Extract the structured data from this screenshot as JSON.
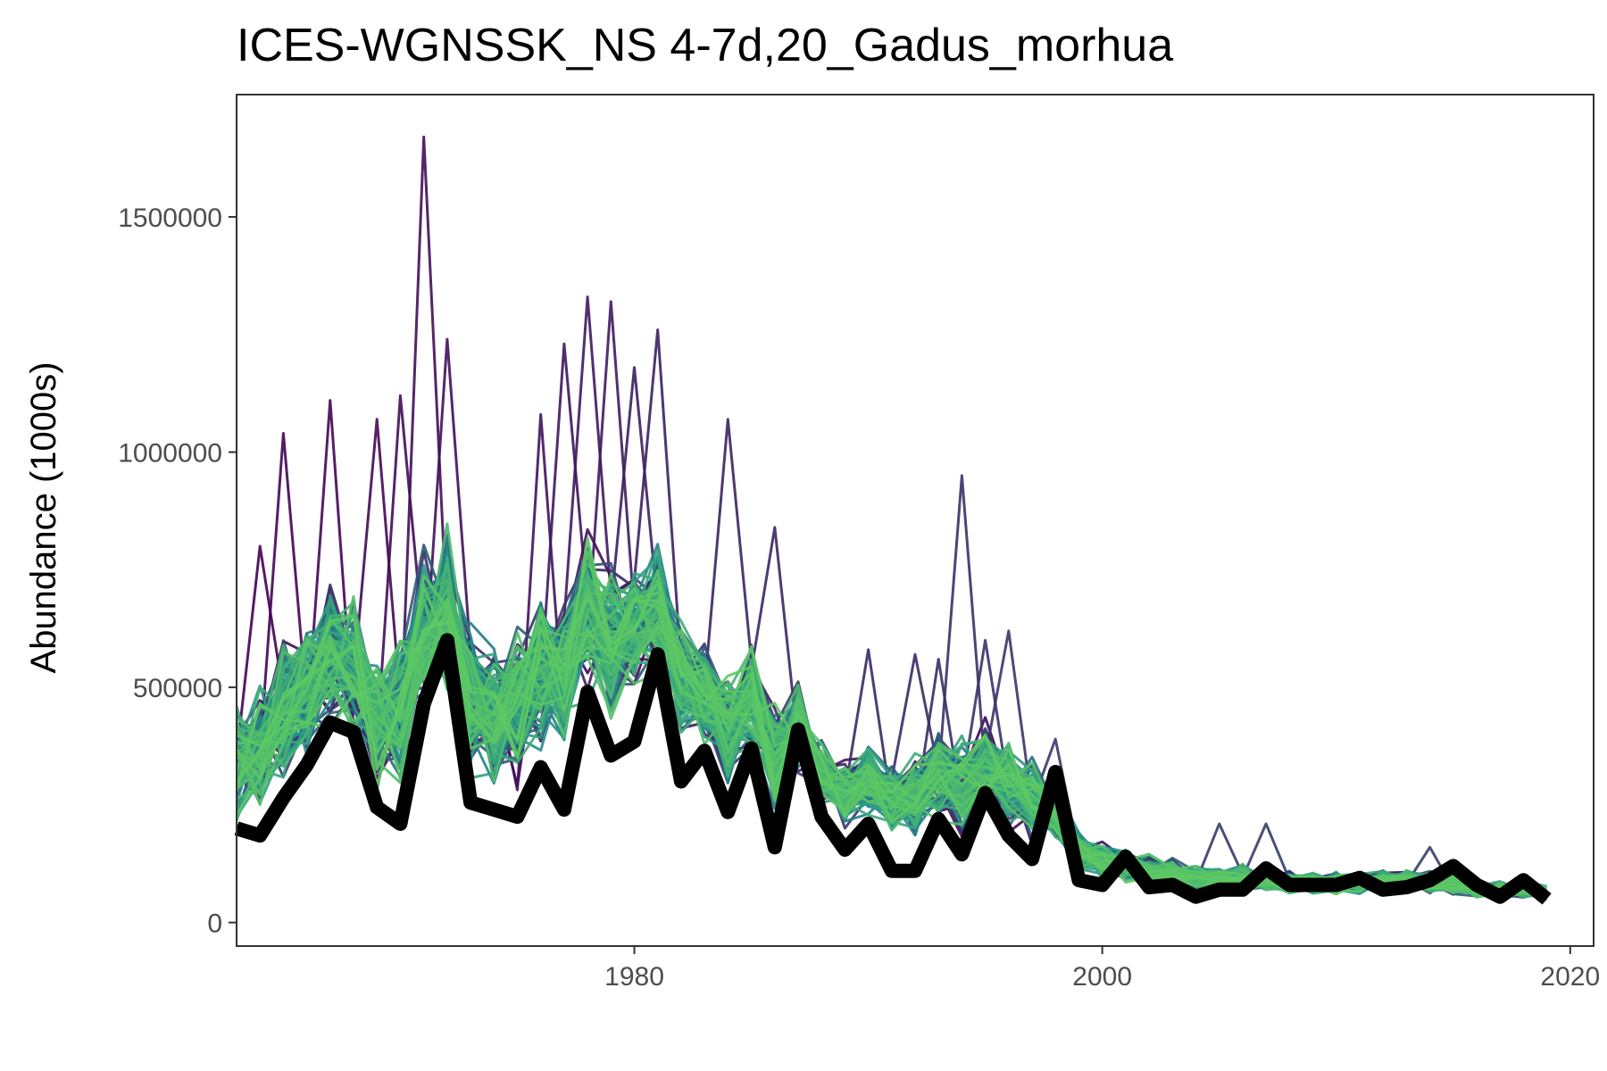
{
  "chart_data": {
    "type": "line",
    "title": "ICES-WGNSSK_NS 4-7d,20_Gadus_morhua",
    "xlabel": "",
    "ylabel": "Abundance (1000s)",
    "xlim": [
      1963,
      2021
    ],
    "ylim": [
      -50000,
      1760000
    ],
    "grid": false,
    "legend": "none",
    "x_ticks": [
      {
        "value": 1980,
        "label": "1980"
      },
      {
        "value": 2000,
        "label": "2000"
      },
      {
        "value": 2020,
        "label": "2020"
      }
    ],
    "y_ticks": [
      {
        "value": 0,
        "label": "0"
      },
      {
        "value": 500000,
        "label": "500000"
      },
      {
        "value": 1000000,
        "label": "1000000"
      },
      {
        "value": 1500000,
        "label": "1500000"
      }
    ],
    "x": [
      1963,
      1964,
      1965,
      1966,
      1967,
      1968,
      1969,
      1970,
      1971,
      1972,
      1973,
      1974,
      1975,
      1976,
      1977,
      1978,
      1979,
      1980,
      1981,
      1982,
      1983,
      1984,
      1985,
      1986,
      1987,
      1988,
      1989,
      1990,
      1991,
      1992,
      1993,
      1994,
      1995,
      1996,
      1997,
      1998,
      1999,
      2000,
      2001,
      2002,
      2003,
      2004,
      2005,
      2006,
      2007,
      2008,
      2009,
      2010,
      2011,
      2012,
      2013,
      2014,
      2015,
      2016,
      2017,
      2018,
      2019
    ],
    "series": [
      {
        "role": "main-estimate",
        "color": "#000000",
        "values": [
          200000,
          185000,
          265000,
          335000,
          425000,
          405000,
          245000,
          210000,
          465000,
          600000,
          255000,
          240000,
          225000,
          330000,
          240000,
          490000,
          355000,
          385000,
          570000,
          300000,
          365000,
          235000,
          370000,
          160000,
          410000,
          225000,
          155000,
          210000,
          110000,
          110000,
          220000,
          145000,
          275000,
          185000,
          135000,
          320000,
          90000,
          80000,
          140000,
          75000,
          80000,
          55000,
          70000,
          70000,
          115000,
          80000,
          80000,
          80000,
          95000,
          70000,
          75000,
          90000,
          120000,
          80000,
          55000,
          90000,
          50000
        ]
      },
      {
        "role": "simulation-envelope",
        "color_low": "#440154",
        "color_mid": "#21918c",
        "color_high": "#5ec962",
        "count": 110,
        "lower": [
          140000,
          145000,
          200000,
          220000,
          250000,
          260000,
          200000,
          210000,
          300000,
          350000,
          210000,
          200000,
          200000,
          260000,
          300000,
          340000,
          320000,
          380000,
          400000,
          300000,
          260000,
          210000,
          230000,
          200000,
          250000,
          180000,
          160000,
          170000,
          150000,
          150000,
          150000,
          140000,
          160000,
          150000,
          130000,
          140000,
          80000,
          70000,
          60000,
          50000,
          50000,
          45000,
          45000,
          45000,
          45000,
          40000,
          40000,
          40000,
          40000,
          40000,
          40000,
          40000,
          40000,
          40000,
          35000,
          40000,
          35000
        ],
        "upper": [
          560000,
          600000,
          720000,
          730000,
          800000,
          760000,
          700000,
          780000,
          880000,
          900000,
          760000,
          740000,
          780000,
          800000,
          880000,
          950000,
          900000,
          880000,
          880000,
          760000,
          680000,
          620000,
          620000,
          580000,
          560000,
          420000,
          400000,
          420000,
          420000,
          440000,
          460000,
          470000,
          450000,
          440000,
          420000,
          330000,
          220000,
          200000,
          180000,
          160000,
          150000,
          140000,
          130000,
          130000,
          130000,
          120000,
          120000,
          120000,
          120000,
          120000,
          120000,
          120000,
          120000,
          100000,
          90000,
          100000,
          80000
        ],
        "spike_x": [
          1964,
          1965,
          1967,
          1969,
          1970,
          1971,
          1972,
          1976,
          1977,
          1978,
          1979,
          1980,
          1981,
          1984,
          1986,
          1990,
          1992,
          1993,
          1994,
          1995,
          1996,
          1998,
          2005,
          2007,
          2014
        ],
        "spike_y": [
          800000,
          1040000,
          1110000,
          1070000,
          1120000,
          1670000,
          1240000,
          1080000,
          1230000,
          1330000,
          1320000,
          1180000,
          1260000,
          1070000,
          840000,
          580000,
          570000,
          560000,
          950000,
          600000,
          620000,
          390000,
          210000,
          210000,
          160000
        ]
      }
    ]
  }
}
